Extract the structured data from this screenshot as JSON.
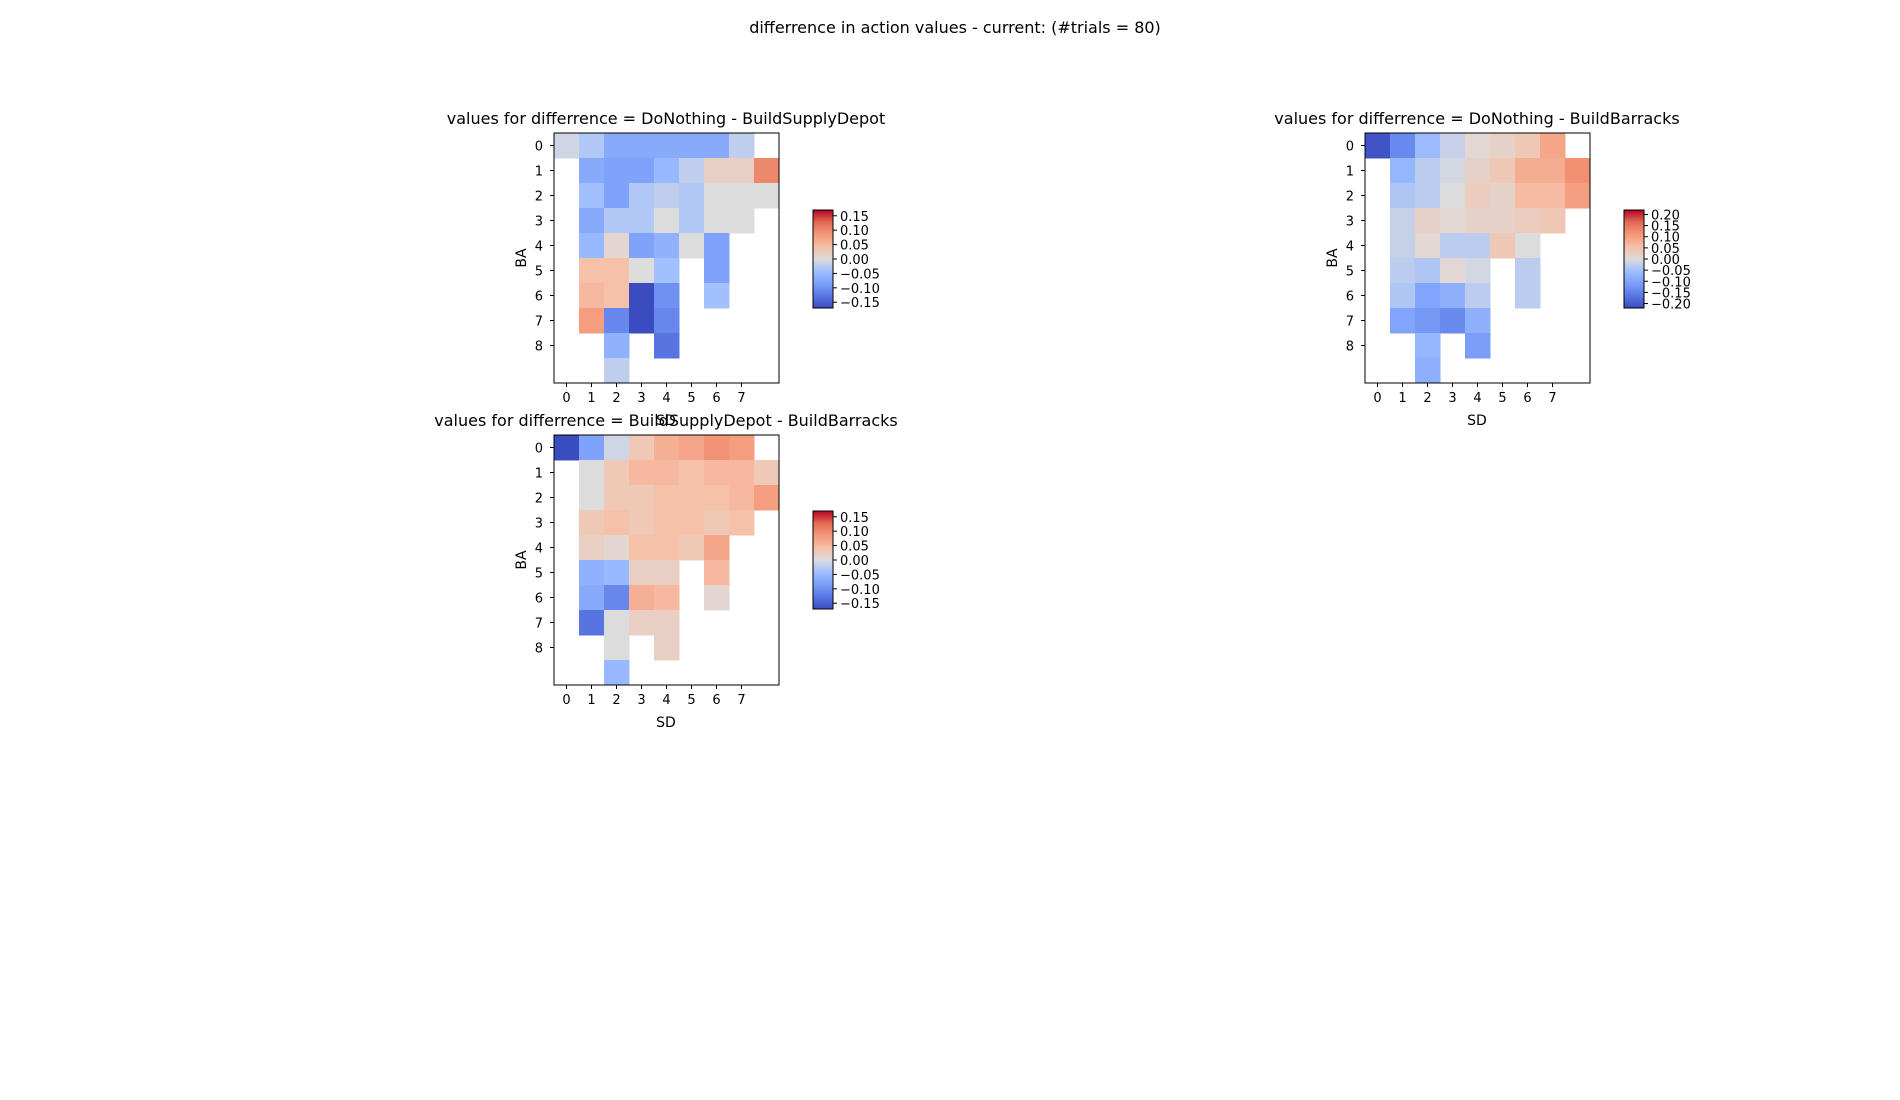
{
  "figure": {
    "suptitle": "differrence in action values - current: (#trials = 80)"
  },
  "chart_data": [
    {
      "type": "heatmap",
      "title": "values for differrence = DoNothing - BuildSupplyDepot",
      "xlabel": "SD",
      "ylabel": "BA",
      "x_ticks": [
        "0",
        "1",
        "2",
        "3",
        "4",
        "5",
        "6",
        "7"
      ],
      "y_ticks": [
        "0",
        "1",
        "2",
        "3",
        "4",
        "5",
        "6",
        "7",
        "8"
      ],
      "colorbar_ticks": [
        "0.15",
        "0.10",
        "0.05",
        "0.00",
        "−0.05",
        "−0.10",
        "−0.15"
      ],
      "vmin": -0.17,
      "vmax": 0.17,
      "colormap": "coolwarm",
      "values": [
        [
          -0.01,
          -0.03,
          -0.07,
          -0.07,
          -0.07,
          -0.07,
          -0.07,
          -0.02,
          null
        ],
        [
          null,
          -0.07,
          -0.08,
          -0.08,
          -0.05,
          -0.02,
          0.02,
          0.02,
          0.1
        ],
        [
          null,
          -0.04,
          -0.08,
          -0.03,
          -0.02,
          -0.03,
          0.0,
          0.0,
          0.0
        ],
        [
          null,
          -0.07,
          -0.03,
          -0.03,
          0.0,
          -0.03,
          0.0,
          0.0,
          null
        ],
        [
          null,
          -0.05,
          0.01,
          -0.08,
          -0.06,
          0.0,
          -0.08,
          null,
          null
        ],
        [
          null,
          0.04,
          0.04,
          0.0,
          -0.04,
          null,
          -0.08,
          null,
          null
        ],
        [
          null,
          0.05,
          0.04,
          -0.17,
          -0.1,
          null,
          -0.04,
          null,
          null
        ],
        [
          null,
          0.08,
          -0.11,
          -0.17,
          -0.11,
          null,
          null,
          null,
          null
        ],
        [
          null,
          null,
          -0.06,
          null,
          -0.13,
          null,
          null,
          null,
          null
        ],
        [
          null,
          null,
          -0.02,
          null,
          null,
          null,
          null,
          null,
          null
        ]
      ]
    },
    {
      "type": "heatmap",
      "title": "values for differrence = DoNothing - BuildBarracks",
      "xlabel": "SD",
      "ylabel": "BA",
      "x_ticks": [
        "0",
        "1",
        "2",
        "3",
        "4",
        "5",
        "6",
        "7"
      ],
      "y_ticks": [
        "0",
        "1",
        "2",
        "3",
        "4",
        "5",
        "6",
        "7",
        "8"
      ],
      "colorbar_ticks": [
        "0.20",
        "0.15",
        "0.10",
        "0.05",
        "0.00",
        "−0.05",
        "−0.10",
        "−0.15",
        "−0.20"
      ],
      "vmin": -0.22,
      "vmax": 0.22,
      "colormap": "coolwarm",
      "values": [
        [
          -0.21,
          -0.14,
          -0.06,
          -0.02,
          0.01,
          0.02,
          0.04,
          0.09,
          null
        ],
        [
          null,
          -0.07,
          -0.03,
          -0.01,
          0.02,
          0.04,
          0.08,
          0.08,
          0.12
        ],
        [
          null,
          -0.04,
          -0.03,
          0.0,
          0.03,
          0.02,
          0.06,
          0.06,
          0.1
        ],
        [
          null,
          -0.02,
          0.02,
          0.01,
          0.02,
          0.02,
          0.03,
          0.04,
          null
        ],
        [
          null,
          -0.02,
          0.01,
          -0.03,
          -0.03,
          0.04,
          0.0,
          null,
          null
        ],
        [
          null,
          -0.03,
          -0.04,
          0.01,
          -0.01,
          null,
          -0.03,
          null,
          null
        ],
        [
          null,
          -0.04,
          -0.1,
          -0.08,
          -0.03,
          null,
          -0.03,
          null,
          null
        ],
        [
          null,
          -0.1,
          -0.12,
          -0.14,
          -0.08,
          null,
          null,
          null,
          null
        ],
        [
          null,
          null,
          -0.07,
          null,
          -0.11,
          null,
          null,
          null,
          null
        ],
        [
          null,
          null,
          -0.08,
          null,
          null,
          null,
          null,
          null,
          null
        ]
      ]
    },
    {
      "type": "heatmap",
      "title": "values for differrence = BuildSupplyDepot - BuildBarracks",
      "xlabel": "SD",
      "ylabel": "BA",
      "x_ticks": [
        "0",
        "1",
        "2",
        "3",
        "4",
        "5",
        "6",
        "7"
      ],
      "y_ticks": [
        "0",
        "1",
        "2",
        "3",
        "4",
        "5",
        "6",
        "7",
        "8"
      ],
      "colorbar_ticks": [
        "0.15",
        "0.10",
        "0.05",
        "0.00",
        "−0.05",
        "−0.10",
        "−0.15"
      ],
      "vmin": -0.17,
      "vmax": 0.17,
      "colormap": "coolwarm",
      "values": [
        [
          -0.17,
          -0.08,
          -0.01,
          0.03,
          0.06,
          0.07,
          0.09,
          0.08,
          null
        ],
        [
          null,
          0.0,
          0.03,
          0.05,
          0.05,
          0.04,
          0.05,
          0.05,
          0.03
        ],
        [
          null,
          0.0,
          0.03,
          0.03,
          0.04,
          0.04,
          0.04,
          0.05,
          0.08
        ],
        [
          null,
          0.03,
          0.04,
          0.03,
          0.04,
          0.04,
          0.03,
          0.04,
          null
        ],
        [
          null,
          0.02,
          0.01,
          0.04,
          0.04,
          0.03,
          0.07,
          null,
          null
        ],
        [
          null,
          -0.06,
          -0.05,
          0.02,
          0.02,
          null,
          0.05,
          null,
          null
        ],
        [
          null,
          -0.07,
          -0.11,
          0.06,
          0.05,
          null,
          0.01,
          null,
          null
        ],
        [
          null,
          -0.13,
          0.0,
          0.02,
          0.02,
          null,
          null,
          null,
          null
        ],
        [
          null,
          null,
          0.0,
          null,
          0.02,
          null,
          null,
          null,
          null
        ],
        [
          null,
          null,
          -0.05,
          null,
          null,
          null,
          null,
          null,
          null
        ]
      ]
    }
  ]
}
